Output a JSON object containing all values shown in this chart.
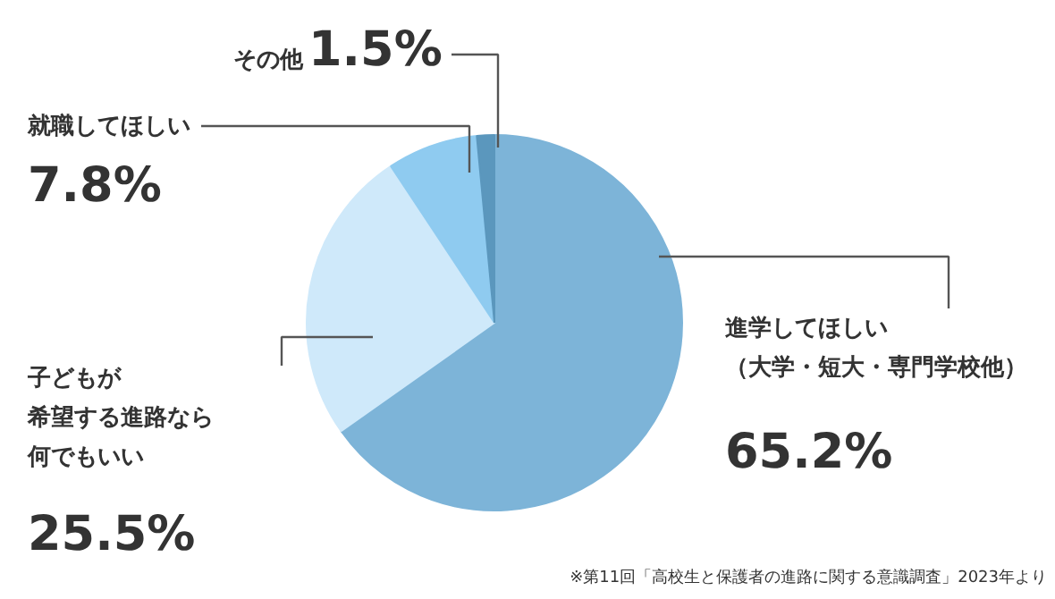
{
  "chart_data": {
    "type": "pie",
    "categories": [
      "進学してほしい（大学・短大・専門学校他）",
      "子どもが希望する進路なら何でもいい",
      "就職してほしい",
      "その他"
    ],
    "values": [
      65.2,
      25.5,
      7.8,
      1.5
    ],
    "colors": [
      "#7db4d8",
      "#cfe9fa",
      "#8fcbf0",
      "#5b97bd"
    ],
    "value_labels": [
      "65.2%",
      "25.5%",
      "7.8%",
      "1.5%"
    ],
    "annotations": [
      "※第11回「高校生と保護者の進路に関する意識調査」2023年より"
    ]
  }
}
